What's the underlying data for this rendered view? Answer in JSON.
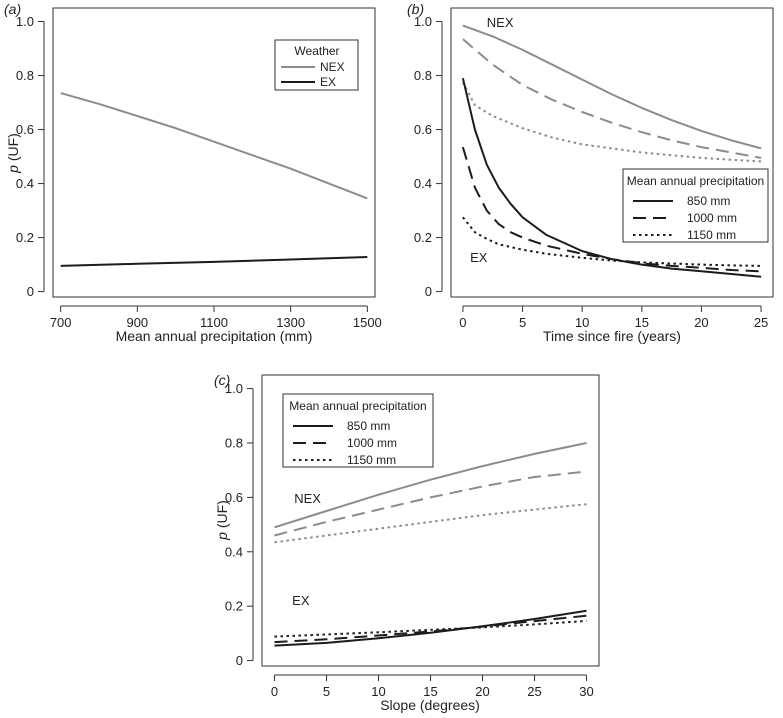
{
  "colors": {
    "nex": "#8c8c8c",
    "ex": "#1c1c1c",
    "axis": "#333333"
  },
  "chart_data": [
    {
      "panel": "(a)",
      "type": "line",
      "xlabel": "Mean annual precipitation (mm)",
      "ylabel": "p (UF)",
      "xlim": [
        680,
        1520
      ],
      "ylim": [
        -0.02,
        1.05
      ],
      "xticks": [
        700,
        900,
        1100,
        1300,
        1500
      ],
      "yticks": [
        0,
        0.2,
        0.4,
        0.6,
        0.8,
        1.0
      ],
      "legend": {
        "title": "Weather",
        "placement": "top-right",
        "entries": [
          "NEX",
          "EX"
        ]
      },
      "series": [
        {
          "name": "NEX",
          "color": "nex",
          "dash": "solid",
          "x": [
            700,
            800,
            900,
            1000,
            1100,
            1200,
            1300,
            1400,
            1500
          ],
          "y": [
            0.735,
            0.695,
            0.65,
            0.605,
            0.555,
            0.505,
            0.455,
            0.4,
            0.345
          ]
        },
        {
          "name": "EX",
          "color": "ex",
          "dash": "solid",
          "x": [
            700,
            900,
            1100,
            1300,
            1500
          ],
          "y": [
            0.095,
            0.103,
            0.11,
            0.119,
            0.128
          ]
        }
      ],
      "annotations": []
    },
    {
      "panel": "(b)",
      "type": "line",
      "xlabel": "Time since fire (years)",
      "ylabel": "",
      "xlim": [
        -1,
        26
      ],
      "ylim": [
        -0.02,
        1.05
      ],
      "xticks": [
        0,
        5,
        10,
        15,
        20,
        25
      ],
      "yticks": [
        0,
        0.2,
        0.4,
        0.6,
        0.8,
        1.0
      ],
      "legend": {
        "title": "Mean annual precipitation",
        "placement": "right",
        "entries": [
          "850 mm",
          "1000 mm",
          "1150 mm"
        ]
      },
      "series": [
        {
          "name": "NEX 850 mm",
          "color": "nex",
          "dash": "solid",
          "x": [
            0,
            2.5,
            5,
            7.5,
            10,
            12.5,
            15,
            17.5,
            20,
            22.5,
            25
          ],
          "y": [
            0.985,
            0.945,
            0.895,
            0.84,
            0.785,
            0.73,
            0.68,
            0.635,
            0.595,
            0.56,
            0.53
          ]
        },
        {
          "name": "NEX 1000 mm",
          "color": "nex",
          "dash": "dashed",
          "x": [
            0,
            2.5,
            5,
            7.5,
            10,
            12.5,
            15,
            17.5,
            20,
            22.5,
            25
          ],
          "y": [
            0.935,
            0.84,
            0.765,
            0.71,
            0.665,
            0.625,
            0.59,
            0.56,
            0.535,
            0.515,
            0.495
          ]
        },
        {
          "name": "NEX 1150 mm",
          "color": "nex",
          "dash": "dotted",
          "x": [
            0,
            1,
            2.5,
            5,
            7.5,
            10,
            12.5,
            15,
            17.5,
            20,
            22.5,
            25
          ],
          "y": [
            0.775,
            0.69,
            0.65,
            0.605,
            0.57,
            0.545,
            0.53,
            0.515,
            0.505,
            0.495,
            0.488,
            0.482
          ]
        },
        {
          "name": "EX 850 mm",
          "color": "ex",
          "dash": "solid",
          "x": [
            0,
            1,
            2,
            3,
            4,
            5,
            7,
            10,
            12.5,
            15,
            17.5,
            20,
            22.5,
            25
          ],
          "y": [
            0.79,
            0.6,
            0.47,
            0.385,
            0.325,
            0.275,
            0.21,
            0.15,
            0.12,
            0.1,
            0.085,
            0.075,
            0.065,
            0.055
          ]
        },
        {
          "name": "EX 1000 mm",
          "color": "ex",
          "dash": "dashed",
          "x": [
            0,
            1,
            2,
            3,
            4,
            5,
            7,
            10,
            12.5,
            15,
            17.5,
            20,
            22.5,
            25
          ],
          "y": [
            0.535,
            0.385,
            0.3,
            0.25,
            0.22,
            0.2,
            0.17,
            0.14,
            0.12,
            0.105,
            0.095,
            0.088,
            0.08,
            0.075
          ]
        },
        {
          "name": "EX 1150 mm",
          "color": "ex",
          "dash": "dotted",
          "x": [
            0,
            1,
            2,
            3,
            5,
            7,
            10,
            12.5,
            15,
            17.5,
            20,
            22.5,
            25
          ],
          "y": [
            0.275,
            0.22,
            0.195,
            0.175,
            0.155,
            0.14,
            0.125,
            0.115,
            0.108,
            0.104,
            0.1,
            0.097,
            0.095
          ]
        }
      ],
      "annotations": [
        {
          "text": "NEX",
          "x": 2,
          "y": 0.98,
          "color": "nex"
        },
        {
          "text": "EX",
          "x": 0.6,
          "y": 0.11,
          "color": "ex"
        }
      ]
    },
    {
      "panel": "(c)",
      "type": "line",
      "xlabel": "Slope (degrees)",
      "ylabel": "p (UF)",
      "xlim": [
        -1.2,
        31.2
      ],
      "ylim": [
        -0.02,
        1.05
      ],
      "xticks": [
        0,
        5,
        10,
        15,
        20,
        25,
        30
      ],
      "yticks": [
        0,
        0.2,
        0.4,
        0.6,
        0.8,
        1.0
      ],
      "legend": {
        "title": "Mean annual precipitation",
        "placement": "top-left",
        "entries": [
          "850 mm",
          "1000 mm",
          "1150 mm"
        ]
      },
      "series": [
        {
          "name": "NEX 850 mm",
          "color": "nex",
          "dash": "solid",
          "x": [
            0,
            5,
            10,
            15,
            20,
            25,
            30
          ],
          "y": [
            0.49,
            0.55,
            0.61,
            0.665,
            0.715,
            0.76,
            0.8
          ]
        },
        {
          "name": "NEX 1000 mm",
          "color": "nex",
          "dash": "dashed",
          "x": [
            0,
            5,
            10,
            15,
            20,
            25,
            30
          ],
          "y": [
            0.46,
            0.51,
            0.555,
            0.6,
            0.64,
            0.675,
            0.695
          ]
        },
        {
          "name": "NEX 1150 mm",
          "color": "nex",
          "dash": "dotted",
          "x": [
            0,
            5,
            10,
            15,
            20,
            25,
            30
          ],
          "y": [
            0.435,
            0.46,
            0.485,
            0.51,
            0.535,
            0.555,
            0.575
          ]
        },
        {
          "name": "EX 850 mm",
          "color": "ex",
          "dash": "solid",
          "x": [
            0,
            5,
            10,
            15,
            20,
            25,
            30
          ],
          "y": [
            0.055,
            0.065,
            0.082,
            0.102,
            0.126,
            0.153,
            0.183
          ]
        },
        {
          "name": "EX 1000 mm",
          "color": "ex",
          "dash": "dashed",
          "x": [
            0,
            5,
            10,
            15,
            20,
            25,
            30
          ],
          "y": [
            0.068,
            0.078,
            0.092,
            0.107,
            0.125,
            0.145,
            0.165
          ]
        },
        {
          "name": "EX 1150 mm",
          "color": "ex",
          "dash": "dotted",
          "x": [
            0,
            5,
            10,
            15,
            20,
            25,
            30
          ],
          "y": [
            0.088,
            0.096,
            0.104,
            0.113,
            0.122,
            0.133,
            0.146
          ]
        }
      ],
      "annotations": [
        {
          "text": "NEX",
          "x": 1.9,
          "y": 0.58,
          "color": "nex"
        },
        {
          "text": "EX",
          "x": 1.7,
          "y": 0.205,
          "color": "ex"
        }
      ]
    }
  ]
}
